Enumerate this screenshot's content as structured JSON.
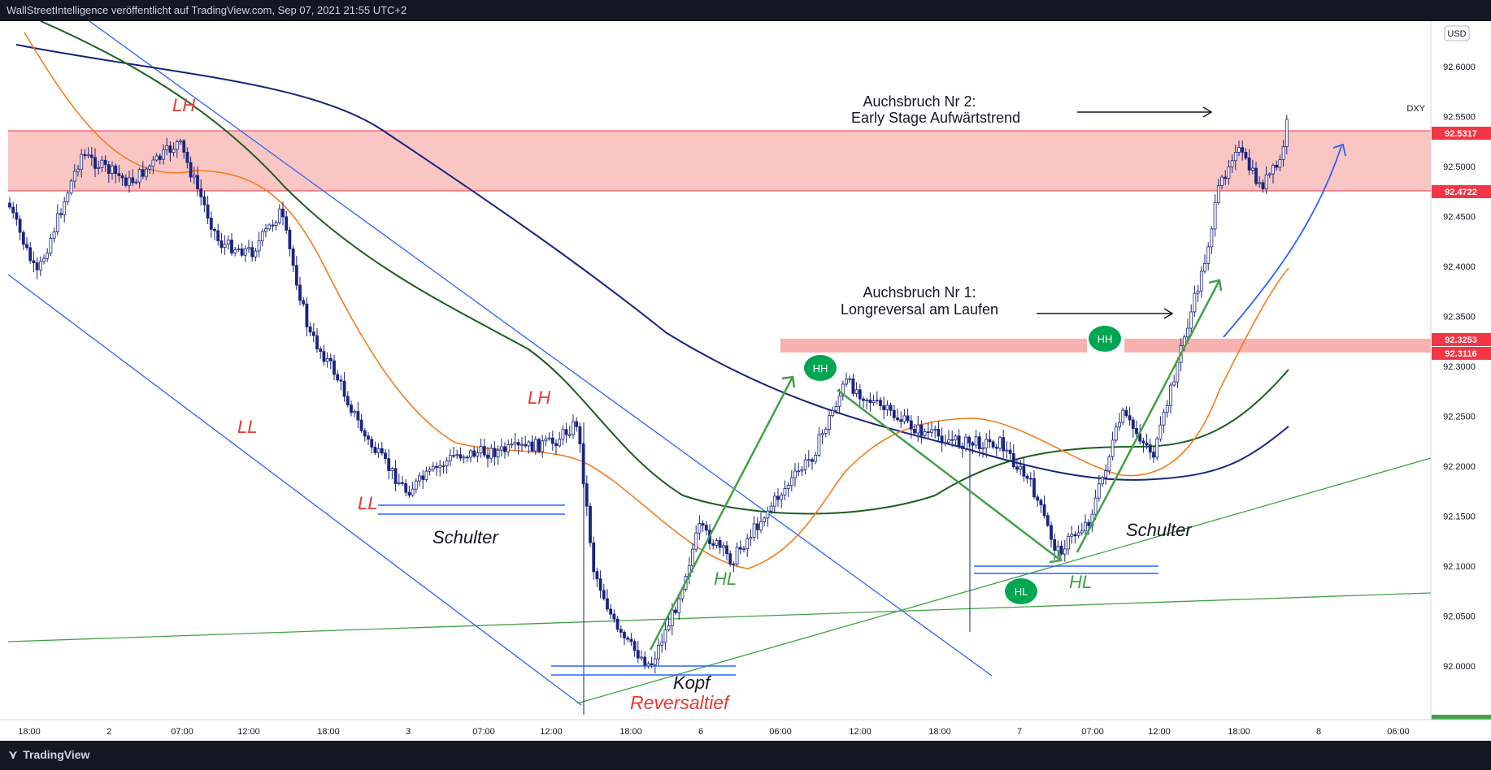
{
  "header": {
    "publisher_line": "WallStreetIntelligence veröffentlicht auf TradingView.com, Sep 07, 2021 21:55 UTC+2"
  },
  "footer": {
    "brand": "TradingView",
    "brand_icon": "tradingview-logo-icon"
  },
  "chart_data": {
    "type": "candlestick",
    "symbol": "DXY",
    "currency": "USD",
    "y_axis": {
      "ticks": [
        "92.6000",
        "92.5500",
        "92.5000",
        "92.4500",
        "92.4000",
        "92.3500",
        "92.3000",
        "92.2500",
        "92.2000",
        "92.1500",
        "92.1000",
        "92.0500",
        "92.0000"
      ],
      "range": [
        91.95,
        92.62
      ]
    },
    "x_axis": {
      "ticks": [
        "18:00",
        "2",
        "07:00",
        "12:00",
        "18:00",
        "3",
        "07:00",
        "12:00",
        "18:00",
        "6",
        "06:00",
        "12:00",
        "18:00",
        "7",
        "07:00",
        "12:00",
        "18:00",
        "8",
        "06:00"
      ]
    },
    "price_labels": [
      {
        "value": "92.5317",
        "color": "#f23645"
      },
      {
        "value": "92.4722",
        "color": "#f23645"
      },
      {
        "value": "92.3253",
        "color": "#f23645"
      },
      {
        "value": "92.3116",
        "color": "#f23645"
      }
    ],
    "resistance_zones": [
      {
        "from": 92.4722,
        "to": 92.5317,
        "color": "#f7b9b6"
      },
      {
        "from": 92.3116,
        "to": 92.3253,
        "color": "#f7b9b6"
      }
    ],
    "moving_averages": [
      {
        "color": "#f57c20"
      },
      {
        "color": "#1b5e20"
      },
      {
        "color": "#1a237e"
      }
    ],
    "annotations": {
      "red_labels": [
        "LH",
        "LL",
        "LH",
        "LL",
        "Reversaltief"
      ],
      "black_labels": [
        "Schulter",
        "Kopf",
        "Schulter"
      ],
      "green_labels": [
        "HL",
        "HL"
      ],
      "badges": [
        "HH",
        "HH",
        "HL"
      ],
      "notes": [
        "Auchsbruch Nr 2:",
        "Early Stage Aufwärtstrend",
        "Auchsbruch Nr 1:",
        "Longreversal am Laufen"
      ]
    },
    "colors": {
      "up": "#131722",
      "down": "#131722",
      "trendline_blue": "#2962ff",
      "trendline_green": "#43a047",
      "label_red": "#e53935",
      "label_green": "#43a047",
      "badge_green": "#00a651"
    }
  }
}
